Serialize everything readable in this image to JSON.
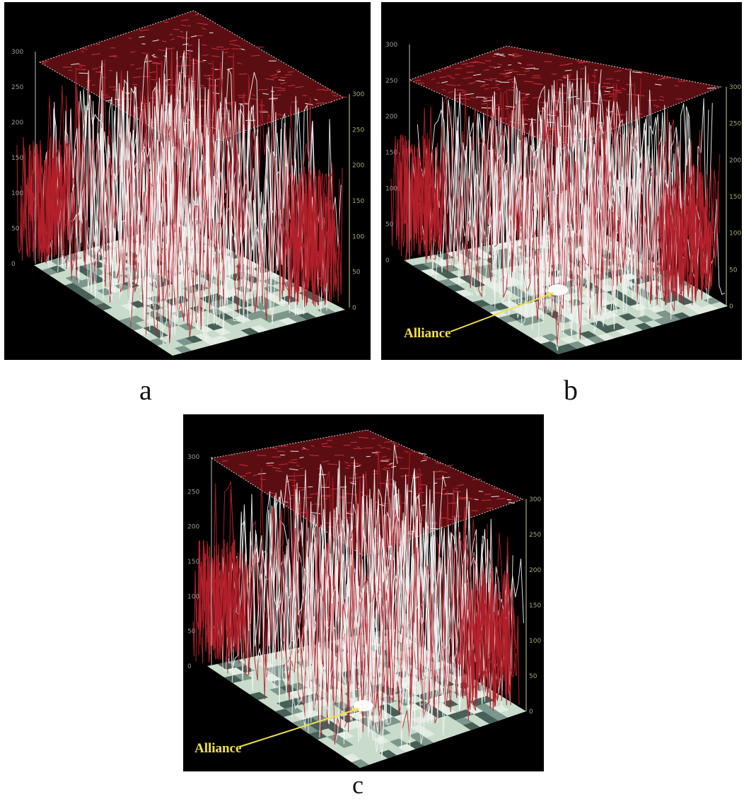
{
  "figure": {
    "panels": [
      {
        "id": "a",
        "caption": "a",
        "callout": "",
        "tick_labels": [
          "300",
          "250",
          "200",
          "150",
          "100",
          "50",
          "0"
        ],
        "right_ticks": [
          "300",
          "250",
          "200",
          "150",
          "100",
          "50",
          "0"
        ]
      },
      {
        "id": "b",
        "caption": "b",
        "callout": "Alliance",
        "tick_labels": [
          "300",
          "250",
          "200",
          "150",
          "100",
          "50",
          "0"
        ],
        "right_ticks": [
          "300",
          "250",
          "200",
          "150",
          "100",
          "50",
          "0"
        ]
      },
      {
        "id": "c",
        "caption": "c",
        "callout": "Alliance",
        "tick_labels": [
          "300",
          "250",
          "200",
          "150",
          "100",
          "50",
          "0"
        ],
        "right_ticks": [
          "300",
          "250",
          "200",
          "150",
          "100",
          "50",
          "0"
        ]
      }
    ],
    "colors": {
      "background": "#000000",
      "trace_white": "#f4f4f4",
      "trace_red": "#b3202a",
      "plane_top": "#5a0e12",
      "floor_light": "#c9dccb",
      "floor_dark": "#2f4a44",
      "callout": "#f2e04a"
    }
  }
}
